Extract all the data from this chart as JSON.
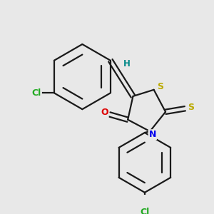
{
  "bg_color": "#e8e8e8",
  "bond_color": "#1a1a1a",
  "atom_colors": {
    "Cl_top": "#22aa22",
    "Cl_bottom": "#22aa22",
    "S_ring": "#bbaa00",
    "S_thioxo": "#bbaa00",
    "O": "#dd0000",
    "N": "#0000ee",
    "H": "#008888"
  }
}
